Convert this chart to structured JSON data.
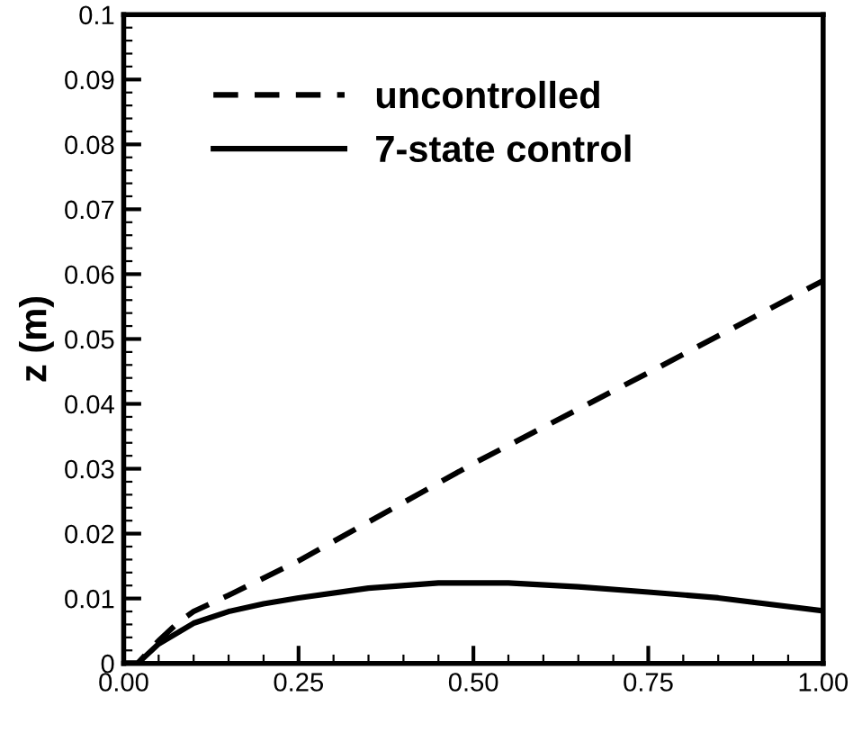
{
  "chart_data": {
    "type": "line",
    "ylabel": "z (m)",
    "xlim": [
      0,
      1
    ],
    "xticks": [
      {
        "value": 0,
        "label": "0.00"
      },
      0.25,
      {
        "value": 0.5,
        "label": "0.50"
      },
      0.75,
      {
        "value": 1,
        "label": "1.00"
      }
    ],
    "ylim": [
      0,
      0.1
    ],
    "yticks": [
      0,
      0.01,
      0.02,
      0.03,
      0.04,
      0.05,
      0.06,
      0.07,
      0.08,
      0.09,
      0.1
    ],
    "grid": false,
    "legend": "top left",
    "series": [
      {
        "name": "uncontrolled",
        "color": "#000000",
        "line_style": "dashed",
        "x": [
          0.0,
          0.02,
          0.05,
          0.08,
          0.1,
          0.15,
          0.25,
          0.5,
          0.75,
          1.0
        ],
        "values": [
          0.0,
          0.0,
          0.0035,
          0.0065,
          0.008,
          0.0105,
          0.0158,
          0.0308,
          0.0448,
          0.059
        ]
      },
      {
        "name": "7-state control",
        "color": "#000000",
        "line_style": "solid",
        "x": [
          0.0,
          0.02,
          0.05,
          0.1,
          0.15,
          0.2,
          0.25,
          0.35,
          0.45,
          0.55,
          0.65,
          0.75,
          0.85,
          1.0
        ],
        "values": [
          0.0,
          0.0,
          0.003,
          0.0062,
          0.008,
          0.0092,
          0.0101,
          0.0116,
          0.0124,
          0.0124,
          0.0118,
          0.011,
          0.0101,
          0.0081
        ]
      }
    ]
  }
}
